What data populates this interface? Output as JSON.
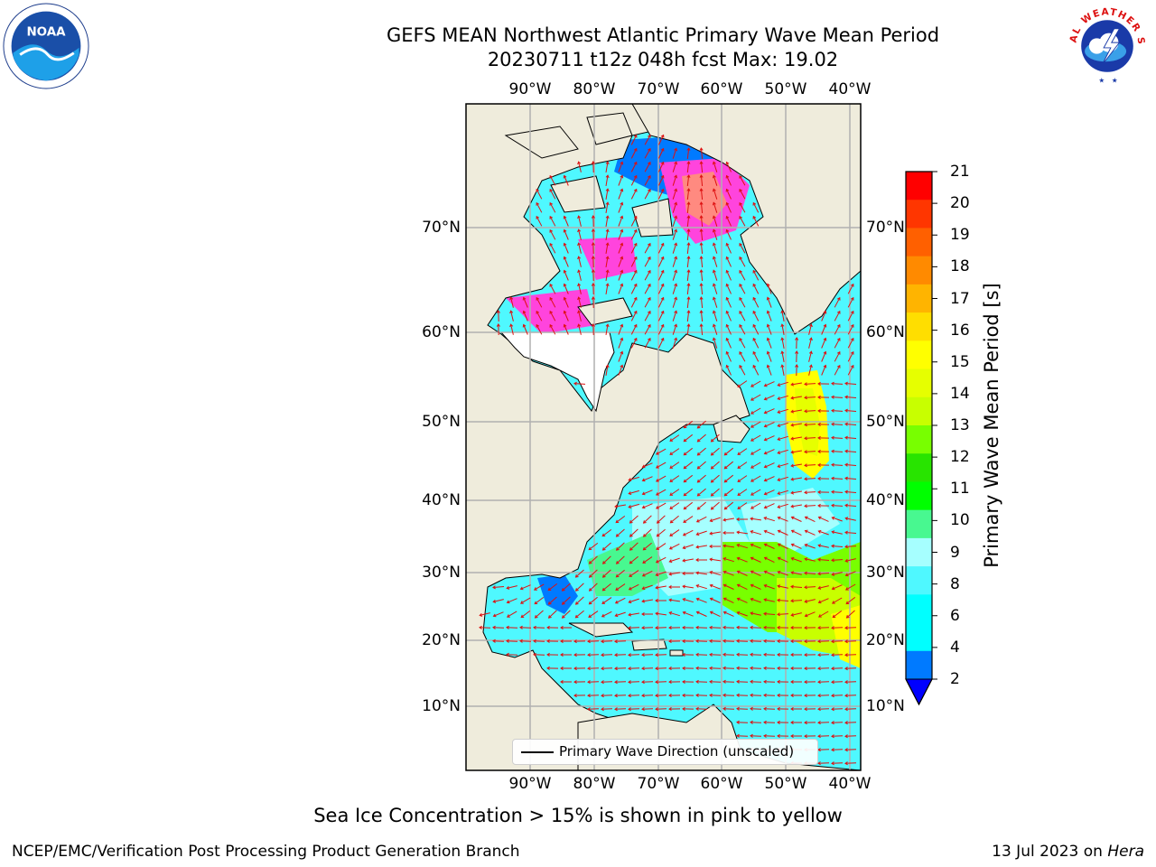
{
  "title": {
    "line1": "GEFS MEAN Northwest Atlantic Primary Wave Mean Period",
    "line2": "20230711 t12z 048h fcst   Max: 19.02"
  },
  "map": {
    "lon_labels": [
      "90°W",
      "80°W",
      "70°W",
      "60°W",
      "50°W",
      "40°W"
    ],
    "lat_labels": [
      "70°N",
      "60°N",
      "50°N",
      "40°N",
      "30°N",
      "20°N",
      "10°N"
    ],
    "colors": {
      "land": "#efecdc",
      "white_patch": "#ffffff",
      "grid": "#b0b0b0",
      "arrow": "#dd1010",
      "coast": "#000000"
    }
  },
  "legend": {
    "label": "Primary Wave Direction (unscaled)"
  },
  "colorbar": {
    "title": "Primary Wave Mean Period [s]",
    "ticks": [
      "21",
      "20",
      "19",
      "18",
      "17",
      "16",
      "15",
      "14",
      "13",
      "12",
      "11",
      "10",
      "9",
      "8",
      "6",
      "4",
      "2"
    ],
    "colors": [
      "#ff0000",
      "#ff3600",
      "#ff6000",
      "#ff8a00",
      "#ffb400",
      "#ffde00",
      "#ffff00",
      "#e6ff00",
      "#c8ff00",
      "#78ff00",
      "#28e400",
      "#00ff00",
      "#48f890",
      "#a6ffff",
      "#4ff8ff",
      "#00ffff",
      "#00ffff",
      "#007aff"
    ],
    "extend_color": "#0000ff"
  },
  "note": "Sea Ice Concentration > 15% is shown in pink to yellow",
  "footer": {
    "left": "NCEP/EMC/Verification Post Processing Product Generation Branch",
    "date": "13 Jul 2023 on",
    "machine": "Hera"
  },
  "logos": {
    "noaa": "NOAA",
    "nws": "NATIONAL WEATHER SERVICE"
  }
}
